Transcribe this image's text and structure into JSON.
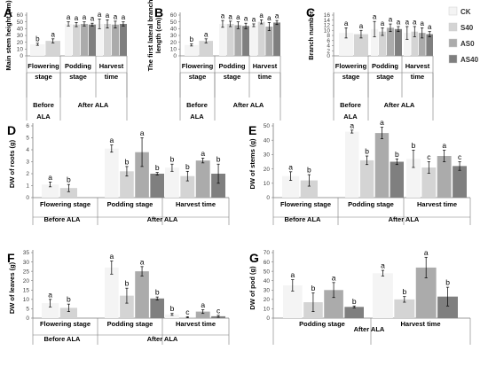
{
  "legend": {
    "entries": [
      {
        "name": "CK",
        "color": "#f4f4f4"
      },
      {
        "name": "S40",
        "color": "#d4d4d4"
      },
      {
        "name": "AS0",
        "color": "#ababab"
      },
      {
        "name": "AS40",
        "color": "#7f7f7f"
      }
    ]
  },
  "chart_data": [
    {
      "panel": "A",
      "type": "bar",
      "ylabel": "Main stem height (cm)",
      "yticks": [
        0,
        10,
        20,
        30,
        40,
        50,
        60
      ],
      "ylim": [
        0,
        60
      ],
      "categories": [
        "Flowering stage",
        "Podding stage",
        "Harvest time"
      ],
      "groups": [
        [
          "Before",
          "ALA"
        ],
        [
          "After ALA"
        ]
      ],
      "series": [
        {
          "name": "CK",
          "values": [
            17,
            47,
            47
          ],
          "errors": [
            1.5,
            3,
            7
          ],
          "letters": [
            "b",
            "a",
            "a"
          ]
        },
        {
          "name": "S40",
          "values": [
            22,
            46,
            47
          ],
          "errors": [
            3,
            3,
            6
          ],
          "letters": [
            "a",
            "a",
            "a"
          ]
        },
        {
          "name": "AS0",
          "values": [
            null,
            47,
            46
          ],
          "errors": [
            null,
            3,
            5
          ],
          "letters": [
            null,
            "a",
            "a"
          ]
        },
        {
          "name": "AS40",
          "values": [
            null,
            46,
            47
          ],
          "errors": [
            null,
            2,
            3
          ],
          "letters": [
            null,
            "a",
            "a"
          ]
        }
      ]
    },
    {
      "panel": "B",
      "type": "bar",
      "ylabel": "The first lateral branch length (cm)",
      "yticks": [
        0,
        10,
        20,
        30,
        40,
        50,
        60
      ],
      "ylim": [
        0,
        60
      ],
      "categories": [
        "Flowering stage",
        "Podding stage",
        "Harvest time"
      ],
      "groups": [
        [
          "Before",
          "ALA"
        ],
        [
          "After ALA"
        ]
      ],
      "series": [
        {
          "name": "CK",
          "values": [
            16,
            47,
            45
          ],
          "errors": [
            1.5,
            5,
            2
          ],
          "letters": [
            "b",
            "a",
            "a"
          ]
        },
        {
          "name": "S40",
          "values": [
            22,
            47,
            50
          ],
          "errors": [
            3,
            4,
            3
          ],
          "letters": [
            "a",
            "a",
            "a"
          ]
        },
        {
          "name": "AS0",
          "values": [
            null,
            45,
            43
          ],
          "errors": [
            null,
            5,
            6
          ],
          "letters": [
            null,
            "a",
            "a"
          ]
        },
        {
          "name": "AS40",
          "values": [
            null,
            44,
            49
          ],
          "errors": [
            null,
            4,
            3
          ],
          "letters": [
            null,
            "a",
            "a"
          ]
        }
      ]
    },
    {
      "panel": "C",
      "type": "bar",
      "ylabel": "Branch number",
      "yticks": [
        0,
        2,
        4,
        6,
        8,
        10,
        12,
        14,
        16
      ],
      "ylim": [
        0,
        16
      ],
      "categories": [
        "Flowering stage",
        "Podding stage",
        "Harvest time"
      ],
      "groups": [
        [
          "Before",
          "ALA"
        ],
        [
          "After ALA"
        ]
      ],
      "series": [
        {
          "name": "CK",
          "values": [
            9,
            10.5,
            9
          ],
          "errors": [
            2,
            3,
            2.5
          ],
          "letters": [
            "a",
            "a",
            "a"
          ]
        },
        {
          "name": "S40",
          "values": [
            8.5,
            9.5,
            9.5
          ],
          "errors": [
            1.5,
            1.5,
            2
          ],
          "letters": [
            "a",
            "a",
            "a"
          ]
        },
        {
          "name": "AS0",
          "values": [
            null,
            11,
            9
          ],
          "errors": [
            null,
            1.5,
            2
          ],
          "letters": [
            null,
            "a",
            "a"
          ]
        },
        {
          "name": "AS40",
          "values": [
            null,
            10.5,
            8.5
          ],
          "errors": [
            null,
            1,
            1
          ],
          "letters": [
            null,
            "a",
            "a"
          ]
        }
      ]
    },
    {
      "panel": "D",
      "type": "bar",
      "ylabel": "DW of roots (g)",
      "yticks": [
        0,
        1,
        2,
        3,
        4,
        5,
        6
      ],
      "ylim": [
        0,
        6
      ],
      "categories": [
        "Flowering stage",
        "Podding stage",
        "Harvest time"
      ],
      "groups": [
        [
          "Before ALA"
        ],
        [
          "After ALA"
        ]
      ],
      "series": [
        {
          "name": "CK",
          "values": [
            1.1,
            4.1,
            2.5
          ],
          "errors": [
            0.2,
            0.3,
            0.3
          ],
          "letters": [
            "a",
            "a",
            "b"
          ]
        },
        {
          "name": "S40",
          "values": [
            0.8,
            2.2,
            1.8
          ],
          "errors": [
            0.3,
            0.4,
            0.4
          ],
          "letters": [
            "b",
            "b",
            "b"
          ]
        },
        {
          "name": "AS0",
          "values": [
            null,
            3.8,
            3.1
          ],
          "errors": [
            null,
            1.2,
            0.2
          ],
          "letters": [
            null,
            "a",
            "a"
          ]
        },
        {
          "name": "AS40",
          "values": [
            null,
            2.0,
            2.0
          ],
          "errors": [
            null,
            0.1,
            0.8
          ],
          "letters": [
            null,
            "b",
            "b"
          ]
        }
      ]
    },
    {
      "panel": "E",
      "type": "bar",
      "ylabel": "DW of stems (g)",
      "yticks": [
        0,
        10,
        20,
        30,
        40,
        50
      ],
      "ylim": [
        0,
        50
      ],
      "categories": [
        "Flowering stage",
        "Podding stage",
        "Harvest time"
      ],
      "groups": [
        [
          "Before ALA"
        ],
        [
          "After ALA"
        ]
      ],
      "series": [
        {
          "name": "CK",
          "values": [
            15,
            46,
            27
          ],
          "errors": [
            3,
            1,
            6
          ],
          "letters": [
            "a",
            "a",
            "b"
          ]
        },
        {
          "name": "S40",
          "values": [
            12,
            26,
            21
          ],
          "errors": [
            4,
            3,
            4
          ],
          "letters": [
            "b",
            "b",
            "c"
          ]
        },
        {
          "name": "AS0",
          "values": [
            null,
            45,
            29
          ],
          "errors": [
            null,
            4,
            4
          ],
          "letters": [
            null,
            "a",
            "a"
          ]
        },
        {
          "name": "AS40",
          "values": [
            null,
            25,
            22
          ],
          "errors": [
            null,
            2,
            3
          ],
          "letters": [
            null,
            "b",
            "c"
          ]
        }
      ]
    },
    {
      "panel": "F",
      "type": "bar",
      "ylabel": "DW of leaves (g)",
      "yticks": [
        0,
        5,
        10,
        15,
        20,
        25,
        30,
        35
      ],
      "ylim": [
        0,
        35
      ],
      "categories": [
        "Flowering stage",
        "Podding stage",
        "Harvest time"
      ],
      "groups": [
        [
          "Before ALA"
        ],
        [
          "After ALA"
        ]
      ],
      "series": [
        {
          "name": "CK",
          "values": [
            8,
            27,
            2
          ],
          "errors": [
            2,
            3.5,
            0.5
          ],
          "letters": [
            "a",
            "a",
            "b"
          ]
        },
        {
          "name": "S40",
          "values": [
            5.5,
            12,
            0.5
          ],
          "errors": [
            2,
            4,
            0.3
          ],
          "letters": [
            "b",
            "b",
            "c"
          ]
        },
        {
          "name": "AS0",
          "values": [
            null,
            25,
            3.5
          ],
          "errors": [
            null,
            2.5,
            1
          ],
          "letters": [
            null,
            "a",
            "a"
          ]
        },
        {
          "name": "AS40",
          "values": [
            null,
            10.5,
            1
          ],
          "errors": [
            null,
            0.8,
            0.5
          ],
          "letters": [
            null,
            "b",
            "c"
          ]
        }
      ]
    },
    {
      "panel": "G",
      "type": "bar",
      "ylabel": "DW of pod (g)",
      "yticks": [
        0,
        10,
        20,
        30,
        40,
        50,
        60,
        70
      ],
      "ylim": [
        0,
        70
      ],
      "categories": [
        "Podding stage",
        "Harvest time"
      ],
      "groups": [
        [
          "After ALA"
        ]
      ],
      "series": [
        {
          "name": "CK",
          "values": [
            35,
            48
          ],
          "errors": [
            6,
            3
          ],
          "letters": [
            "a",
            "a"
          ]
        },
        {
          "name": "S40",
          "values": [
            17,
            20
          ],
          "errors": [
            10,
            3
          ],
          "letters": [
            "b",
            "b"
          ]
        },
        {
          "name": "AS0",
          "values": [
            30,
            54
          ],
          "errors": [
            8,
            11
          ],
          "letters": [
            "a",
            "a"
          ]
        },
        {
          "name": "AS40",
          "values": [
            12,
            23
          ],
          "errors": [
            1,
            10
          ],
          "letters": [
            "b",
            "b"
          ]
        }
      ]
    }
  ]
}
